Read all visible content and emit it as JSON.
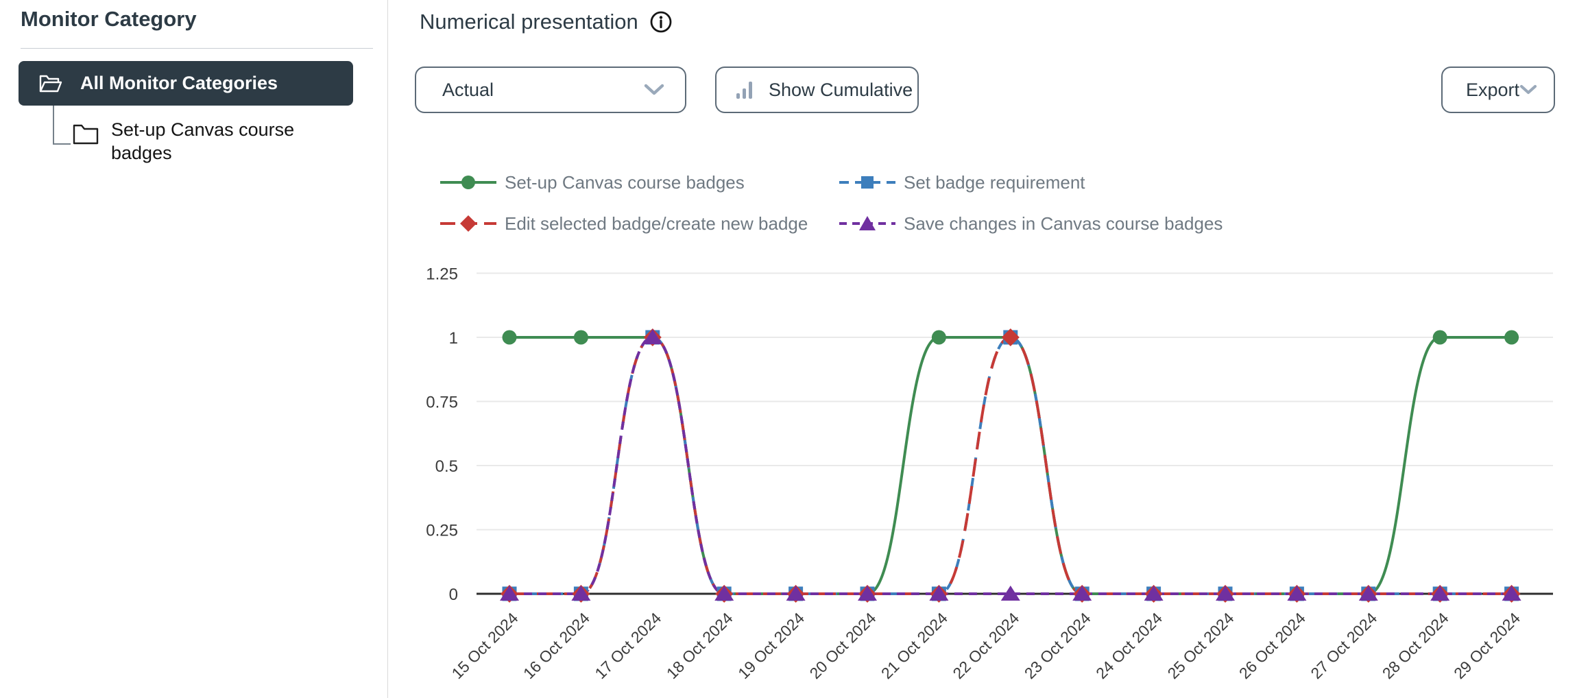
{
  "sidebar": {
    "title": "Monitor Category",
    "items": [
      {
        "label": "All Monitor Categories",
        "selected": true
      },
      {
        "label": "Set-up Canvas course badges",
        "selected": false
      }
    ]
  },
  "header": {
    "title": "Numerical presentation"
  },
  "toolbar": {
    "mode_select": {
      "value": "Actual"
    },
    "cumulative_button": "Show Cumulative",
    "export_button": "Export"
  },
  "colors": {
    "sidebar_selected_bg": "#2d3b45",
    "heading_text": "#2d3b45",
    "legend_text": "#6f7982",
    "gridline": "#e9e9e9",
    "axis_line": "#2e2e2e"
  },
  "icons": [
    "folder-open-icon",
    "folder-icon",
    "info-icon",
    "chevron-down-icon",
    "bar-chart-icon"
  ],
  "chart_data": {
    "type": "line",
    "x": [
      "15 Oct 2024",
      "16 Oct 2024",
      "17 Oct 2024",
      "18 Oct 2024",
      "19 Oct 2024",
      "20 Oct 2024",
      "21 Oct 2024",
      "22 Oct 2024",
      "23 Oct 2024",
      "24 Oct 2024",
      "25 Oct 2024",
      "26 Oct 2024",
      "27 Oct 2024",
      "28 Oct 2024",
      "29 Oct 2024"
    ],
    "yticks": [
      "0",
      "0.25",
      "0.5",
      "0.75",
      "1",
      "1.25"
    ],
    "ylim": [
      0,
      1.25
    ],
    "grid": true,
    "legend_position": "top",
    "series": [
      {
        "name": "Set-up Canvas course badges",
        "color": "#3f8c52",
        "marker": "circle",
        "line_style": "solid",
        "values": [
          1,
          1,
          1,
          0,
          0,
          0,
          1,
          1,
          0,
          0,
          0,
          0,
          0,
          1,
          1
        ]
      },
      {
        "name": "Set badge requirement",
        "color": "#3d7ebc",
        "marker": "square",
        "line_style": "dashed",
        "values": [
          0,
          0,
          1,
          0,
          0,
          0,
          0,
          1,
          0,
          0,
          0,
          0,
          0,
          0,
          0
        ]
      },
      {
        "name": "Edit selected badge/create new badge",
        "color": "#c63a36",
        "marker": "diamond",
        "line_style": "dashed",
        "values": [
          0,
          0,
          1,
          0,
          0,
          0,
          0,
          1,
          0,
          0,
          0,
          0,
          0,
          0,
          0
        ]
      },
      {
        "name": "Save changes in Canvas course badges",
        "color": "#7030a0",
        "marker": "triangle",
        "line_style": "dashed",
        "values": [
          0,
          0,
          1,
          0,
          0,
          0,
          0,
          0,
          0,
          0,
          0,
          0,
          0,
          0,
          0
        ]
      }
    ]
  }
}
